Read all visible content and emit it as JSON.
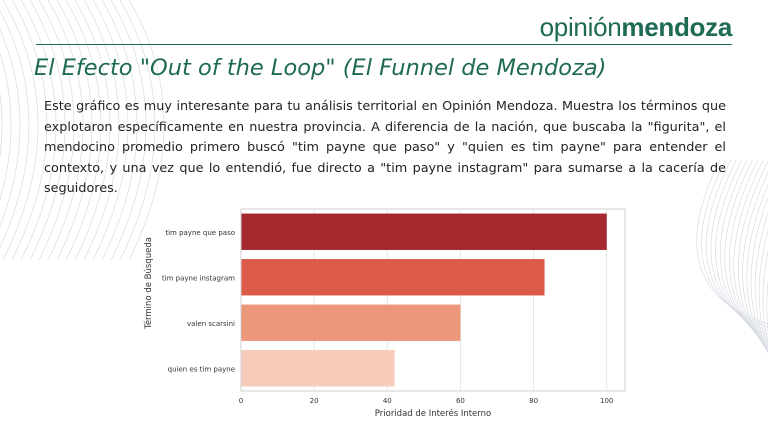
{
  "header": {
    "brand_light": "opinión",
    "brand_bold": "mendoza",
    "brand_color": "#1e6a55"
  },
  "slide": {
    "title": "El Efecto \"Out of the Loop\" (El Funnel de Mendoza)",
    "body": "Este gráfico es muy interesante para tu análisis territorial en Opinión Mendoza. Muestra los términos que explotaron específicamente en nuestra provincia. A diferencia de la nación, que buscaba la \"figurita\", el mendocino promedio primero buscó \"tim payne que paso\" y \"quien es tim payne\" para entender el contexto, y una vez que lo entendió, fue directo a \"tim payne instagram\" para sumarse a la cacería de seguidores."
  },
  "chart_data": {
    "type": "bar",
    "orientation": "horizontal",
    "categories": [
      "tim payne que paso",
      "tim payne instagram",
      "valen scarsini",
      "quien es tim payne"
    ],
    "values": [
      100,
      83,
      60,
      42
    ],
    "colors": [
      "#a6282f",
      "#dc5a4a",
      "#ec977c",
      "#f6cbb9"
    ],
    "xlabel": "Prioridad de Interés Interno",
    "ylabel": "Término de Búsqueda",
    "xlim": [
      0,
      105
    ],
    "xticks": [
      0,
      20,
      40,
      60,
      80,
      100
    ],
    "xtick_labels": [
      "0",
      "20",
      "40",
      "60",
      "80",
      "100"
    ],
    "grid": true
  }
}
